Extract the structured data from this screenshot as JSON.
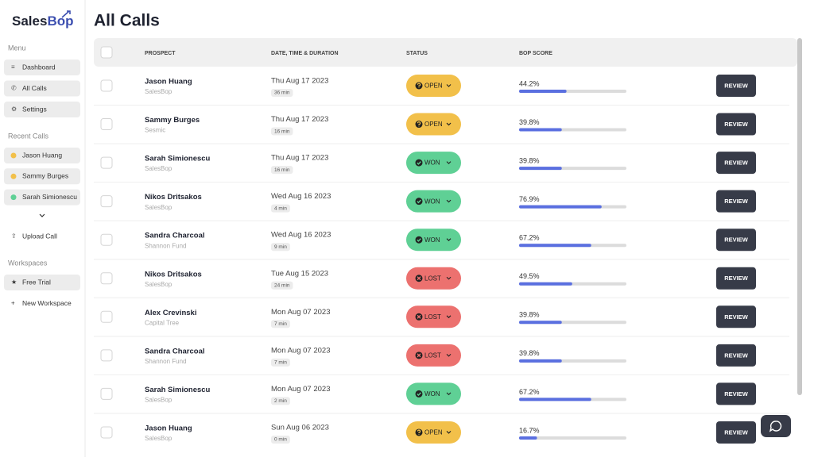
{
  "sidebar": {
    "logo": {
      "part1": "Sales",
      "part2": "Bop"
    },
    "menu": {
      "title": "Menu",
      "items": [
        "Dashboard",
        "All Calls",
        "Settings"
      ]
    },
    "recent": {
      "title": "Recent Calls",
      "items": [
        "Jason Huang",
        "Sammy Burges",
        "Sarah Simionescu"
      ],
      "statuses": [
        "OPEN",
        "OPEN",
        "WON"
      ]
    },
    "upload": "Upload Call",
    "workspaces": {
      "title": "Workspaces",
      "items": [
        "Free Trial",
        "New Workspace"
      ]
    }
  },
  "header": {
    "title": "All Calls"
  },
  "status_styles": {
    "OPEN": {
      "color": "#f2c04a",
      "icon": "question"
    },
    "WON": {
      "color": "#5fd095",
      "icon": "check"
    },
    "LOST": {
      "color": "#ec716f",
      "icon": "cross"
    }
  },
  "score_colors": {
    "fill": "#5a6fe0",
    "track": "#dcdcdc"
  },
  "table": {
    "columns": [
      "PROSPECT",
      "DATE, TIME & DURATION",
      "STATUS",
      "BOP SCORE"
    ],
    "button": "REVIEW",
    "rows": [
      {
        "name": "Jason Huang",
        "company": "SalesBop",
        "date": "Thu Aug 17 2023",
        "duration": "36 min",
        "status": "OPEN",
        "score": 44.2,
        "score_label": "44.2%"
      },
      {
        "name": "Sammy Burges",
        "company": "Sesmic",
        "date": "Thu Aug 17 2023",
        "duration": "16 min",
        "status": "OPEN",
        "score": 39.8,
        "score_label": "39.8%"
      },
      {
        "name": "Sarah Simionescu",
        "company": "SalesBop",
        "date": "Thu Aug 17 2023",
        "duration": "16 min",
        "status": "WON",
        "score": 39.8,
        "score_label": "39.8%"
      },
      {
        "name": "Nikos Dritsakos",
        "company": "SalesBop",
        "date": "Wed Aug 16 2023",
        "duration": "4 min",
        "status": "WON",
        "score": 76.9,
        "score_label": "76.9%"
      },
      {
        "name": "Sandra Charcoal",
        "company": "Shannon Fund",
        "date": "Wed Aug 16 2023",
        "duration": "9 min",
        "status": "WON",
        "score": 67.2,
        "score_label": "67.2%"
      },
      {
        "name": "Nikos Dritsakos",
        "company": "SalesBop",
        "date": "Tue Aug 15 2023",
        "duration": "24 min",
        "status": "LOST",
        "score": 49.5,
        "score_label": "49.5%"
      },
      {
        "name": "Alex Crevinski",
        "company": "Capital Tree",
        "date": "Mon Aug 07 2023",
        "duration": "7 min",
        "status": "LOST",
        "score": 39.8,
        "score_label": "39.8%"
      },
      {
        "name": "Sandra Charcoal",
        "company": "Shannon Fund",
        "date": "Mon Aug 07 2023",
        "duration": "7 min",
        "status": "LOST",
        "score": 39.8,
        "score_label": "39.8%"
      },
      {
        "name": "Sarah Simionescu",
        "company": "SalesBop",
        "date": "Mon Aug 07 2023",
        "duration": "2 min",
        "status": "WON",
        "score": 67.2,
        "score_label": "67.2%"
      },
      {
        "name": "Jason Huang",
        "company": "SalesBop",
        "date": "Sun Aug 06 2023",
        "duration": "0 min",
        "status": "OPEN",
        "score": 16.7,
        "score_label": "16.7%"
      }
    ]
  }
}
